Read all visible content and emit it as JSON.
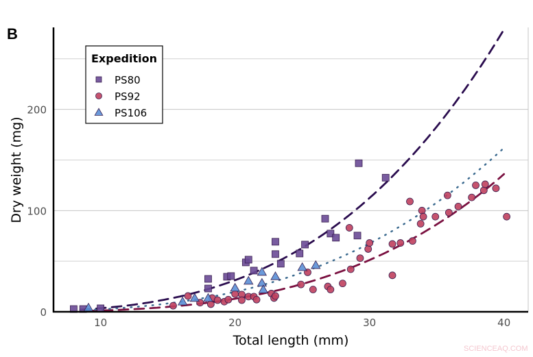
{
  "panel_label": "B",
  "watermark": "SCIENCEAQ.COM",
  "chart_data": {
    "type": "scatter",
    "xlabel": "Total length (mm)",
    "ylabel": "Dry weight (mg)",
    "xlim": [
      6.5,
      41.8
    ],
    "ylim": [
      0,
      281
    ],
    "xticks": [
      10,
      20,
      30,
      40
    ],
    "yticks": [
      0,
      100,
      200
    ],
    "ygrid_minor": [
      50,
      150,
      250
    ],
    "grid": true,
    "legend": {
      "title": "Expedition",
      "placement": "top-left"
    },
    "series": [
      {
        "name": "PS80",
        "marker": "square",
        "color": "#6a4a96",
        "trend_color": "#2a0c4e",
        "trend_style": "dashed",
        "trend_power": {
          "exponent": 3.16,
          "y_at_40": 279
        },
        "x": [
          8.0,
          8.7,
          10.0,
          18.0,
          18.0,
          19.4,
          19.7,
          20.8,
          21.0,
          21.4,
          23.0,
          23.0,
          23.4,
          24.8,
          25.2,
          26.7,
          27.1,
          27.5,
          29.1,
          29.2,
          31.2
        ],
        "y": [
          2.7,
          2.7,
          3.4,
          23,
          32.5,
          34.6,
          35.3,
          48.8,
          51.5,
          40.7,
          69.2,
          57,
          47.5,
          57.6,
          66.4,
          92,
          77.3,
          73.2,
          75.3,
          146.8,
          132.5
        ]
      },
      {
        "name": "PS92",
        "marker": "circle",
        "color": "#c0405e",
        "trend_color": "#7a1040",
        "trend_style": "dashed",
        "trend_power": {
          "exponent": 3.4,
          "y_at_40": 136
        },
        "x": [
          15.4,
          16.5,
          17.4,
          18.2,
          18.3,
          18.7,
          19.2,
          19.5,
          20.0,
          20.5,
          20.5,
          21.0,
          21.4,
          21.6,
          22.7,
          22.9,
          23.0,
          24.9,
          25.4,
          25.8,
          26.9,
          27.1,
          28.0,
          28.5,
          28.6,
          29.3,
          29.9,
          30.0,
          31.7,
          31.7,
          32.3,
          33.0,
          33.2,
          33.8,
          33.9,
          34.0,
          34.9,
          35.8,
          35.9,
          36.6,
          37.6,
          37.9,
          38.5,
          38.6,
          39.4,
          40.2
        ],
        "y": [
          6,
          15.6,
          9,
          7.5,
          13.6,
          11.5,
          10,
          12,
          17.6,
          17,
          11.5,
          15,
          15,
          12,
          18,
          13.6,
          15.6,
          27,
          39,
          22,
          25,
          22,
          28,
          83,
          42,
          53,
          62,
          68,
          67,
          36,
          68,
          109,
          70,
          87,
          100,
          94,
          94,
          115,
          98,
          104,
          113,
          125,
          120,
          126,
          122,
          94
        ]
      },
      {
        "name": "PS106",
        "marker": "triangle",
        "color": "#5b8fd6",
        "trend_color": "#3b6a8f",
        "trend_style": "dotted",
        "trend_power": {
          "exponent": 3.04,
          "y_at_40": 162
        },
        "x": [
          9.1,
          16.1,
          17.0,
          18.0,
          20.0,
          21.0,
          22.0,
          22.0,
          22.1,
          23.0,
          25.0,
          26.0
        ],
        "y": [
          4,
          10,
          13.6,
          13.6,
          23.7,
          30.5,
          39.3,
          28.5,
          22,
          35,
          44,
          46
        ]
      }
    ]
  }
}
